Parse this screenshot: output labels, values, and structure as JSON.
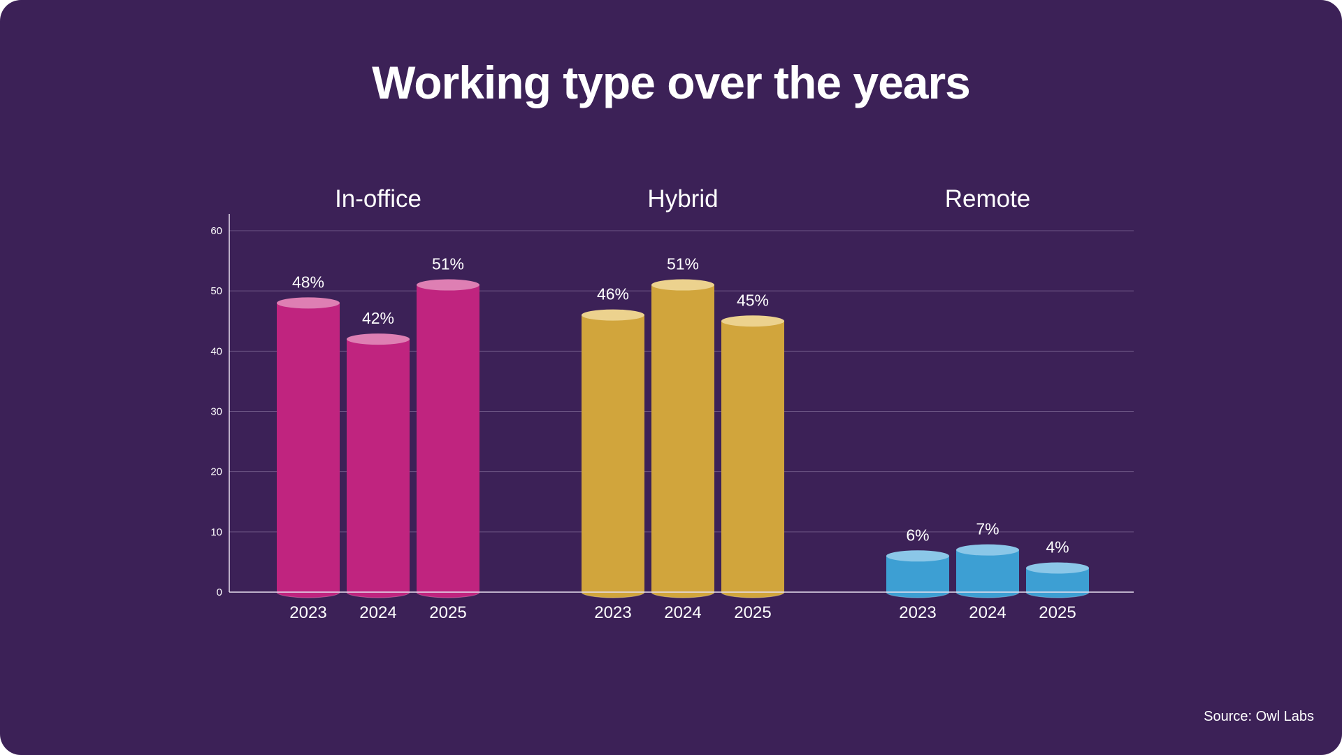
{
  "title": "Working type over the years",
  "source": "Source: Owl Labs",
  "chart_data": {
    "type": "bar",
    "title": "Working type over the years",
    "xlabel": "",
    "ylabel": "",
    "ylim": [
      0,
      60
    ],
    "yticks": [
      0,
      10,
      20,
      30,
      40,
      50,
      60
    ],
    "grid": true,
    "groups": [
      {
        "name": "In-office",
        "color": "#c0247f",
        "top_color": "#de7fb3",
        "categories": [
          "2023",
          "2024",
          "2025"
        ],
        "values": [
          48,
          42,
          51
        ],
        "labels": [
          "48%",
          "42%",
          "51%"
        ]
      },
      {
        "name": "Hybrid",
        "color": "#d1a53c",
        "top_color": "#ecd28e",
        "categories": [
          "2023",
          "2024",
          "2025"
        ],
        "values": [
          46,
          51,
          45
        ],
        "labels": [
          "46%",
          "51%",
          "45%"
        ]
      },
      {
        "name": "Remote",
        "color": "#3d9fd3",
        "top_color": "#8bc7e8",
        "categories": [
          "2023",
          "2024",
          "2025"
        ],
        "values": [
          6,
          7,
          4
        ],
        "labels": [
          "6%",
          "7%",
          "4%"
        ]
      }
    ],
    "colors": {
      "background": "#3c2157",
      "grid": "#6c5584",
      "axis": "#e8e0ef",
      "text": "#ffffff"
    }
  }
}
